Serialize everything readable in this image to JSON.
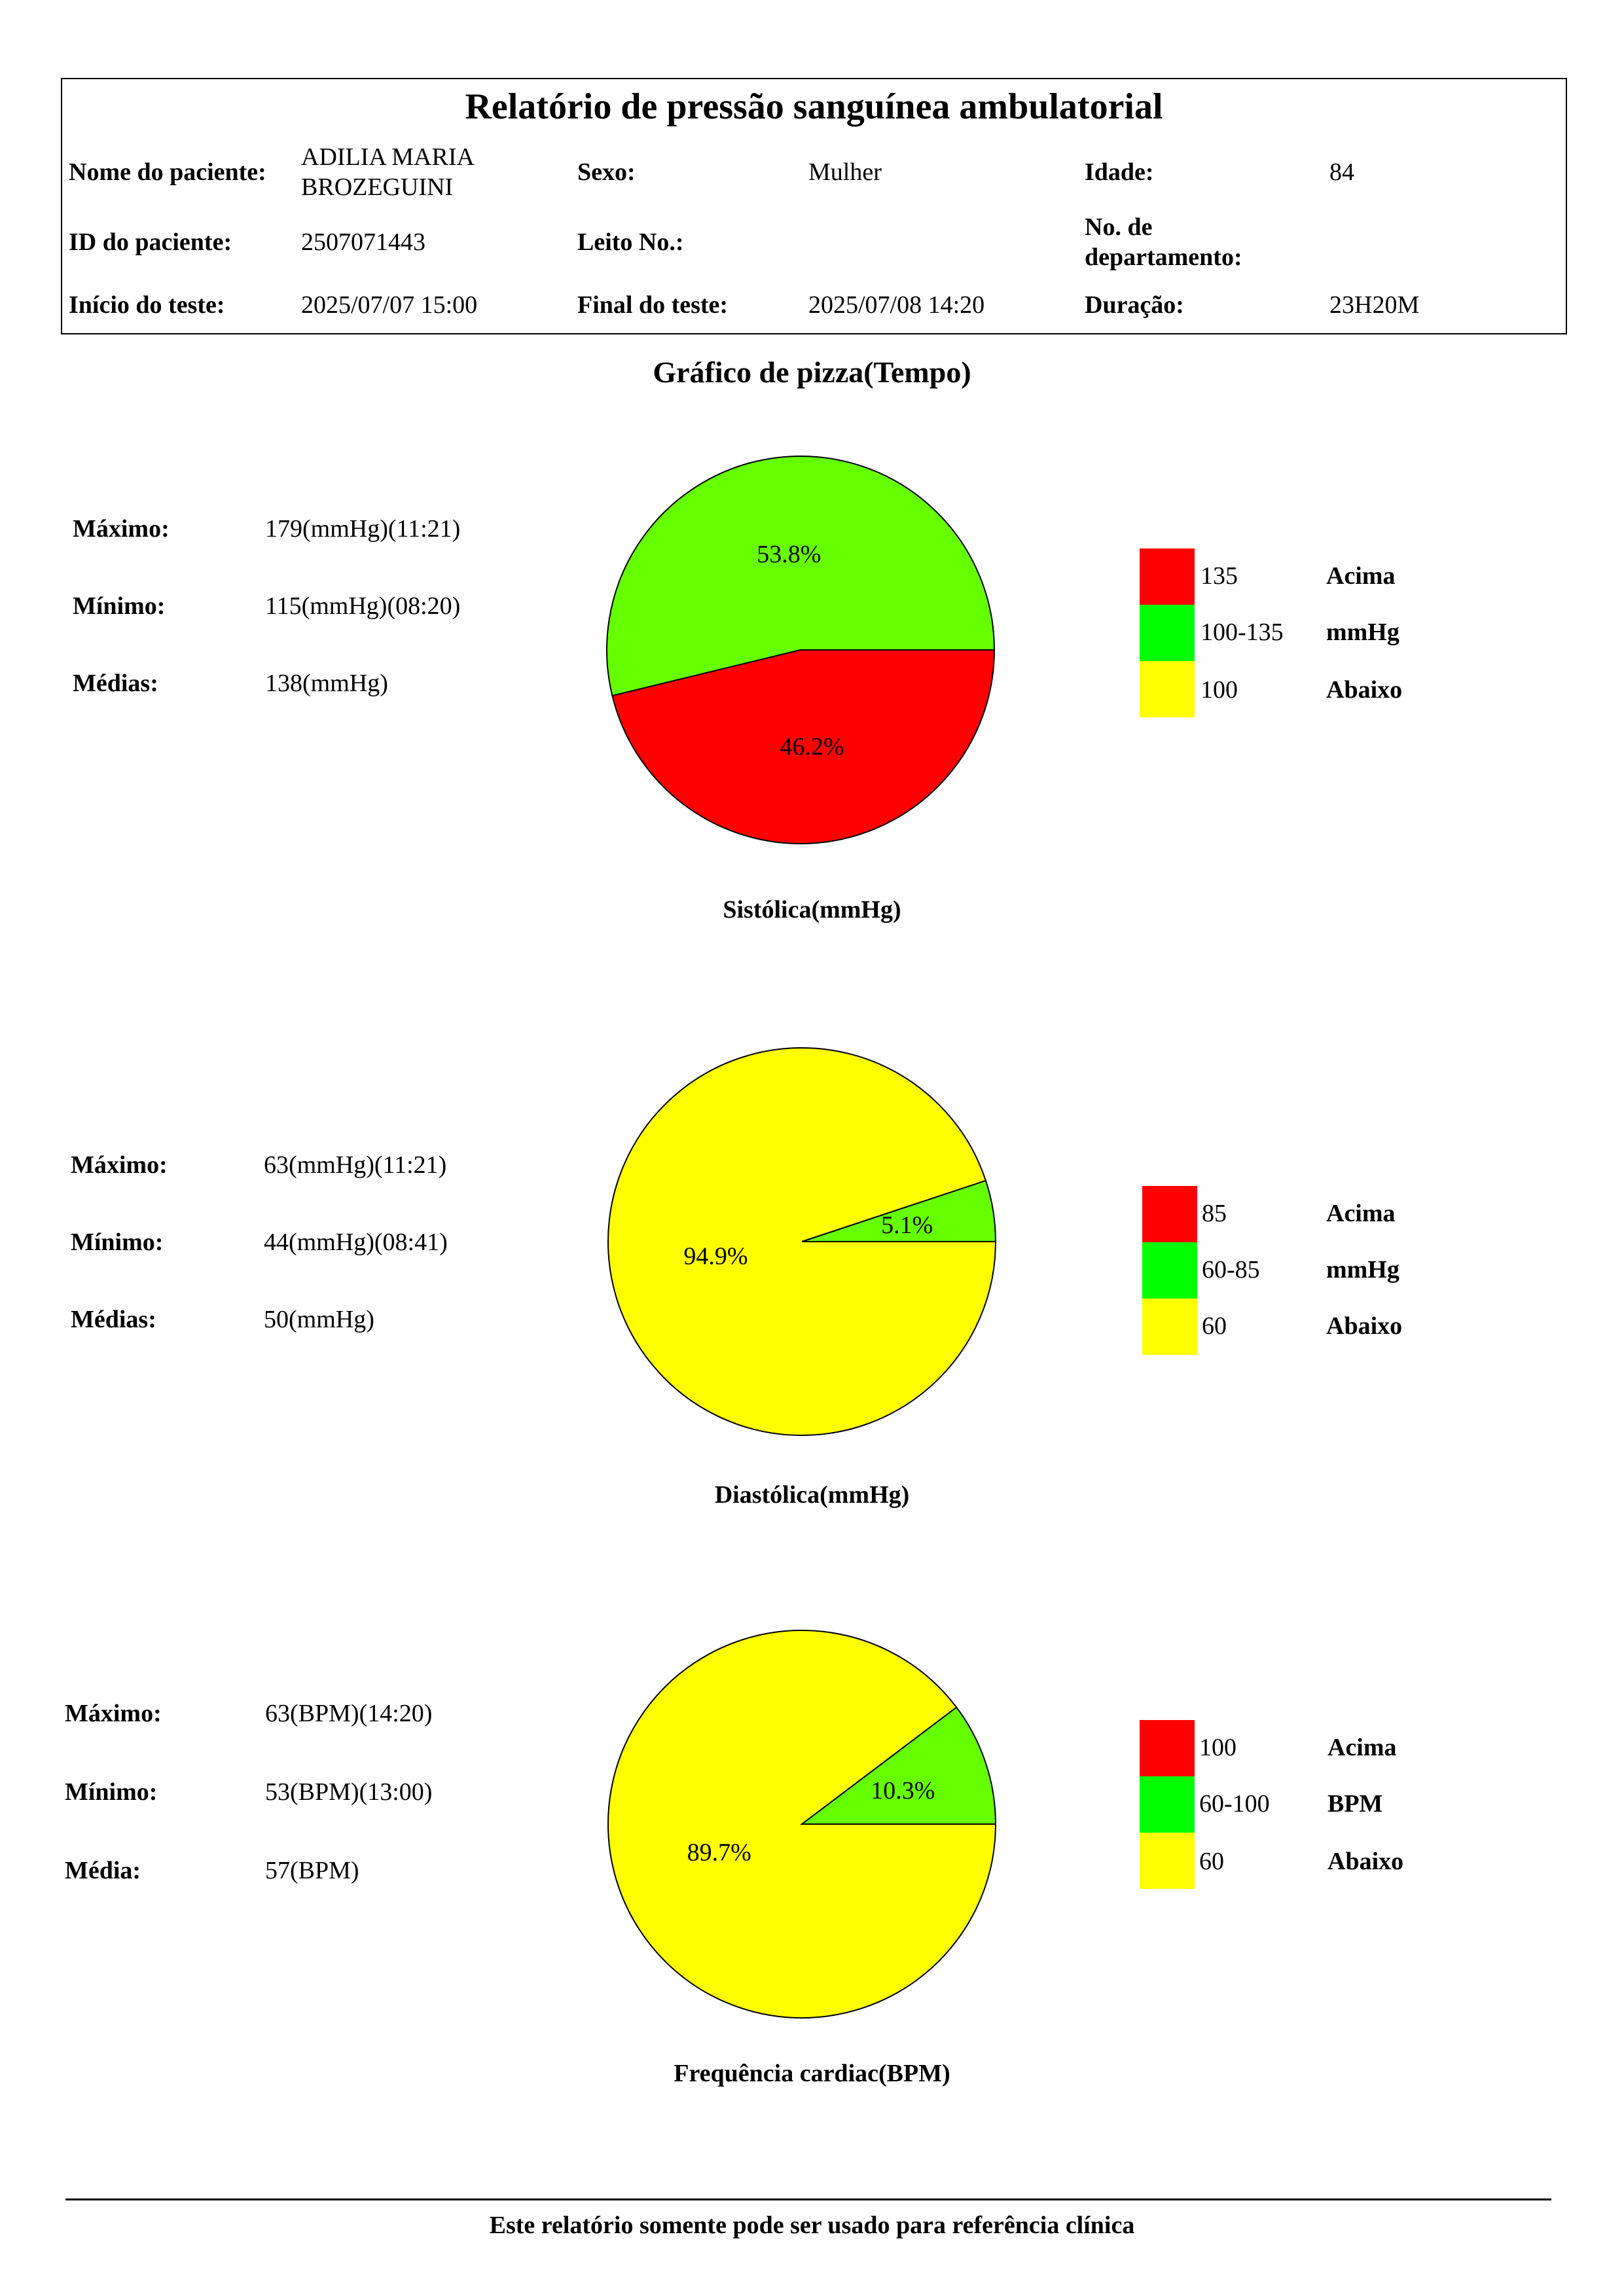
{
  "report": {
    "title": "Relatório de pressão sanguínea ambulatorial",
    "fields": {
      "patient_name_label": "Nome do paciente:",
      "patient_name_line1": "ADILIA MARIA",
      "patient_name_line2": "BROZEGUINI",
      "sex_label": "Sexo:",
      "sex_value": "Mulher",
      "age_label": "Idade:",
      "age_value": "84",
      "patient_id_label": "ID do paciente:",
      "patient_id_value": "2507071443",
      "bed_label": "Leito No.:",
      "bed_value": "",
      "dept_label_line1": "No. de",
      "dept_label_line2": "departamento:",
      "dept_value": "",
      "start_label": "Início do teste:",
      "start_value": "2025/07/07 15:00",
      "end_label": "Final do teste:",
      "end_value": "2025/07/08 14:20",
      "duration_label": "Duração:",
      "duration_value": "23H20M"
    }
  },
  "section_title": "Gráfico de pizza(Tempo)",
  "charts": [
    {
      "caption": "Sistólica(mmHg)",
      "stats": [
        {
          "label": "Máximo:",
          "value": "179(mmHg)(11:21)"
        },
        {
          "label": "Mínimo:",
          "value": "115(mmHg)(08:20)"
        },
        {
          "label": "Médias:",
          "value": "138(mmHg)"
        }
      ],
      "legend": [
        {
          "range": "135",
          "word": "Acima",
          "color": "#ff0000"
        },
        {
          "range": "100-135",
          "word": "mmHg",
          "color": "#00ff00"
        },
        {
          "range": "100",
          "word": "Abaixo",
          "color": "#ffff00"
        }
      ]
    },
    {
      "caption": "Diastólica(mmHg)",
      "stats": [
        {
          "label": "Máximo:",
          "value": "63(mmHg)(11:21)"
        },
        {
          "label": "Mínimo:",
          "value": "44(mmHg)(08:41)"
        },
        {
          "label": "Médias:",
          "value": "50(mmHg)"
        }
      ],
      "legend": [
        {
          "range": "85",
          "word": "Acima",
          "color": "#ff0000"
        },
        {
          "range": "60-85",
          "word": "mmHg",
          "color": "#00ff00"
        },
        {
          "range": "60",
          "word": "Abaixo",
          "color": "#ffff00"
        }
      ]
    },
    {
      "caption": "Frequência cardiac(BPM)",
      "stats": [
        {
          "label": "Máximo:",
          "value": "63(BPM)(14:20)"
        },
        {
          "label": "Mínimo:",
          "value": "53(BPM)(13:00)"
        },
        {
          "label": "Média:",
          "value": "57(BPM)"
        }
      ],
      "legend": [
        {
          "range": "100",
          "word": "Acima",
          "color": "#ff0000"
        },
        {
          "range": "60-100",
          "word": "BPM",
          "color": "#00ff00"
        },
        {
          "range": "60",
          "word": "Abaixo",
          "color": "#ffff00"
        }
      ]
    }
  ],
  "chart_data": [
    {
      "type": "pie",
      "title": "Sistólica(mmHg)",
      "slices": [
        {
          "label": "100-135",
          "value": 53.8,
          "text": "53.8%",
          "color": "#66ff00"
        },
        {
          "label": "135",
          "value": 46.2,
          "text": "46.2%",
          "color": "#ff0000"
        }
      ]
    },
    {
      "type": "pie",
      "title": "Diastólica(mmHg)",
      "slices": [
        {
          "label": "60-85",
          "value": 5.1,
          "text": "5.1%",
          "color": "#66ff00"
        },
        {
          "label": "60",
          "value": 94.9,
          "text": "94.9%",
          "color": "#ffff00"
        }
      ]
    },
    {
      "type": "pie",
      "title": "Frequência cardiac(BPM)",
      "slices": [
        {
          "label": "60-100",
          "value": 10.3,
          "text": "10.3%",
          "color": "#66ff00"
        },
        {
          "label": "60",
          "value": 89.7,
          "text": "89.7%",
          "color": "#ffff00"
        }
      ]
    }
  ],
  "footer": "Este relatório somente pode ser usado para referência clínica"
}
